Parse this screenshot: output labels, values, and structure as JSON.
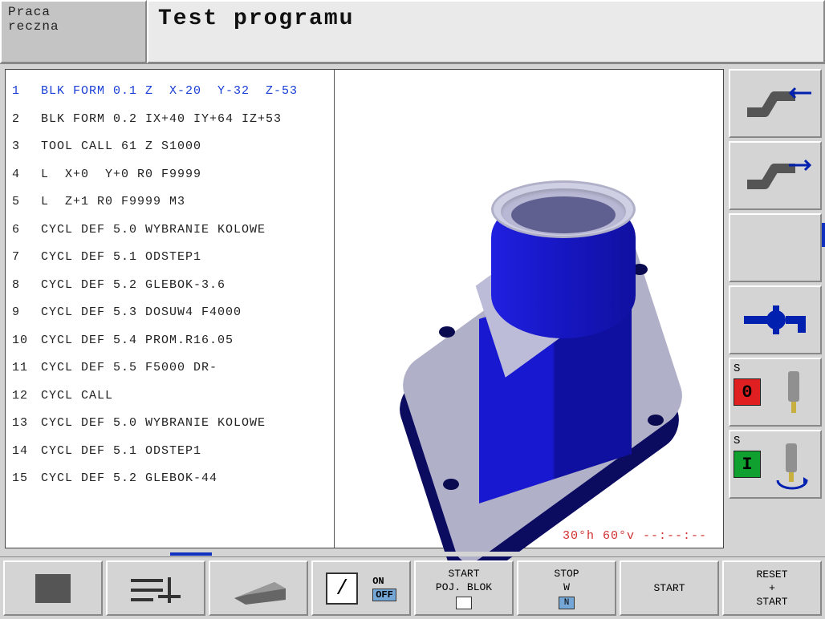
{
  "mode_label": "Praca\nreczna",
  "title": "Test programu",
  "code": [
    {
      "n": "1",
      "txt": "BLK FORM 0.1 Z  X-20  Y-32  Z-53",
      "hl": true
    },
    {
      "n": "2",
      "txt": "BLK FORM 0.2 IX+40 IY+64 IZ+53",
      "hl": false
    },
    {
      "n": "3",
      "txt": "TOOL CALL 61 Z S1000",
      "hl": false
    },
    {
      "n": "4",
      "txt": "L  X+0  Y+0 R0 F9999",
      "hl": false
    },
    {
      "n": "5",
      "txt": "L  Z+1 R0 F9999 M3",
      "hl": false
    },
    {
      "n": "6",
      "txt": "CYCL DEF 5.0 WYBRANIE KOLOWE",
      "hl": false
    },
    {
      "n": "7",
      "txt": "CYCL DEF 5.1 ODSTEP1",
      "hl": false
    },
    {
      "n": "8",
      "txt": "CYCL DEF 5.2 GLEBOK-3.6",
      "hl": false
    },
    {
      "n": "9",
      "txt": "CYCL DEF 5.3 DOSUW4 F4000",
      "hl": false
    },
    {
      "n": "10",
      "txt": "CYCL DEF 5.4 PROM.R16.05",
      "hl": false
    },
    {
      "n": "11",
      "txt": "CYCL DEF 5.5 F5000 DR-",
      "hl": false
    },
    {
      "n": "12",
      "txt": "CYCL CALL",
      "hl": false
    },
    {
      "n": "13",
      "txt": "CYCL DEF 5.0 WYBRANIE KOLOWE",
      "hl": false
    },
    {
      "n": "14",
      "txt": "CYCL DEF 5.1 ODSTEP1",
      "hl": false
    },
    {
      "n": "15",
      "txt": "CYCL DEF 5.2 GLEBOK-44",
      "hl": false
    }
  ],
  "view_status": "30°h  60°v  --:--:--",
  "colors": {
    "part_main": "#1818d0",
    "part_dark": "#0b0b60",
    "part_light": "#b8b8d4",
    "status_text": "#d03030",
    "hl_text": "#1a3fd6",
    "accent_blue": "#1030c0",
    "accent_red_bg": "#e02020",
    "accent_green_bg": "#10a030"
  },
  "rail": {
    "spindle_stop": {
      "label": "S",
      "value": "0",
      "bg": "#e02020",
      "fg": "#000"
    },
    "spindle_start": {
      "label": "S",
      "value": "I",
      "bg": "#10a030",
      "fg": "#000"
    }
  },
  "softkeys": {
    "on_label": "ON",
    "off_label": "OFF",
    "k5_line1": "START",
    "k5_line2": "POJ. BLOK",
    "k6_line1": "STOP",
    "k6_line2": "W",
    "k6_box": "N",
    "k7": "START",
    "k8_line1": "RESET",
    "k8_line2": "+",
    "k8_line3": "START"
  }
}
